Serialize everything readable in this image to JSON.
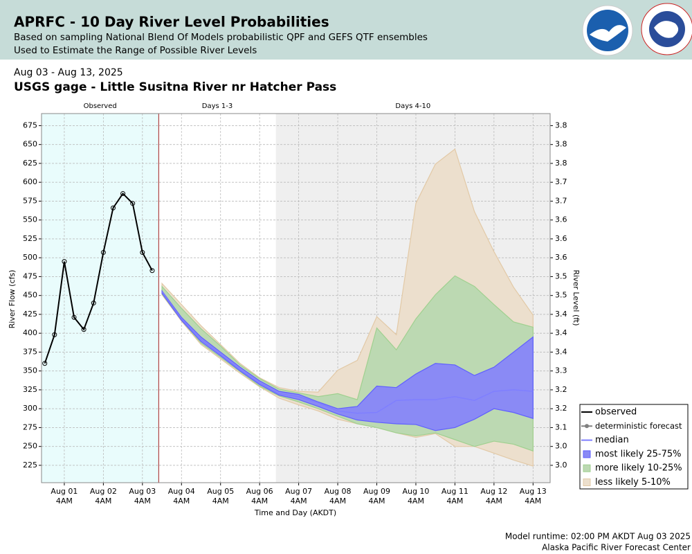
{
  "header": {
    "title": "APRFC - 10 Day River Level Probabilities",
    "subtitle_1": "Based on sampling National Blend Of Models probabilistic QPF and GEFS QTF ensembles",
    "subtitle_2": "Used to Estimate the Range of Possible River Levels"
  },
  "chart_data": {
    "type": "line",
    "date_range": "Aug 03 - Aug 13, 2025",
    "title": "USGS gage - Little Susitna River nr Hatcher Pass",
    "x_label": "Time and Day (AKDT)",
    "y_label": "River Flow (cfs)",
    "y2_label": "River Level (ft)",
    "xlim": [
      "2025-07-31T14:00",
      "2025-08-13T14:30"
    ],
    "xticks": [
      {
        "value": "2025-08-01T04:00",
        "label": "Aug 01 4AM"
      },
      {
        "value": "2025-08-02T04:00",
        "label": "Aug 02 4AM"
      },
      {
        "value": "2025-08-03T04:00",
        "label": "Aug 03 4AM"
      },
      {
        "value": "2025-08-04T04:00",
        "label": "Aug 04 4AM"
      },
      {
        "value": "2025-08-05T04:00",
        "label": "Aug 05 4AM"
      },
      {
        "value": "2025-08-06T04:00",
        "label": "Aug 06 4AM"
      },
      {
        "value": "2025-08-07T04:00",
        "label": "Aug 07 4AM"
      },
      {
        "value": "2025-08-08T04:00",
        "label": "Aug 08 4AM"
      },
      {
        "value": "2025-08-09T04:00",
        "label": "Aug 09 4AM"
      },
      {
        "value": "2025-08-10T04:00",
        "label": "Aug 10 4AM"
      },
      {
        "value": "2025-08-11T04:00",
        "label": "Aug 11 4AM"
      },
      {
        "value": "2025-08-12T04:00",
        "label": "Aug 12 4AM"
      },
      {
        "value": "2025-08-13T04:00",
        "label": "Aug 13 4AM"
      }
    ],
    "ylim": [
      202,
      691
    ],
    "yticks": [
      225,
      250,
      275,
      300,
      325,
      350,
      375,
      400,
      425,
      450,
      475,
      500,
      525,
      550,
      575,
      600,
      625,
      650,
      675
    ],
    "y2tick_labels": [
      "3.0",
      "3.0",
      "3.1",
      "3.2",
      "3.2",
      "3.3",
      "3.4",
      "3.4",
      "3.4",
      "3.5",
      "3.5",
      "3.6",
      "3.6",
      "3.6",
      "3.7",
      "3.7",
      "3.8",
      "3.8",
      "3.8"
    ],
    "grid": true,
    "regions": [
      {
        "label": "Observed",
        "start": "2025-07-31T14:00",
        "end": "2025-08-03T14:00",
        "color": "#e9fcfc"
      },
      {
        "label": "Days 1-3",
        "start": "2025-08-03T14:00",
        "end": "2025-08-06T14:00",
        "color": "#ffffff"
      },
      {
        "label": "Days 4-10",
        "start": "2025-08-06T14:00",
        "end": "2025-08-13T14:30",
        "color": "#efefef"
      }
    ],
    "forecast_start_line_color": "#a02020",
    "legend": "lower right",
    "series": [
      {
        "name": "observed",
        "type": "line",
        "markers": true,
        "color": "#000000",
        "x": [
          "2025-07-31T16:00",
          "2025-07-31T22:00",
          "2025-08-01T04:00",
          "2025-08-01T10:00",
          "2025-08-01T16:00",
          "2025-08-01T22:00",
          "2025-08-02T04:00",
          "2025-08-02T10:00",
          "2025-08-02T16:00",
          "2025-08-02T22:00",
          "2025-08-03T04:00",
          "2025-08-03T10:00"
        ],
        "values": [
          360,
          398,
          495,
          421,
          405,
          440,
          507,
          566,
          585,
          572,
          507,
          483
        ]
      },
      {
        "name": "deterministic forecast",
        "type": "line",
        "markers": true,
        "color": "#808080"
      },
      {
        "name": "median",
        "type": "line",
        "markers": false,
        "color": "#7f7fff",
        "x": [
          "2025-08-03T16:00",
          "2025-08-04T04:00",
          "2025-08-04T16:00",
          "2025-08-05T04:00",
          "2025-08-05T16:00",
          "2025-08-06T04:00",
          "2025-08-06T16:00",
          "2025-08-07T04:00",
          "2025-08-07T16:00",
          "2025-08-08T04:00",
          "2025-08-08T16:00",
          "2025-08-09T04:00",
          "2025-08-09T16:00",
          "2025-08-10T04:00",
          "2025-08-10T16:00",
          "2025-08-11T04:00",
          "2025-08-11T16:00",
          "2025-08-12T04:00",
          "2025-08-12T16:00",
          "2025-08-13T04:00"
        ],
        "values": [
          455,
          419,
          392,
          372,
          352,
          334,
          320,
          316,
          308,
          297,
          294,
          295,
          311,
          312,
          312,
          316,
          311,
          323,
          325,
          323
        ]
      },
      {
        "name": "most likely 25-75%",
        "type": "band",
        "color": "#8a8af5",
        "edge": "#5f5fff",
        "order": 3,
        "x": [
          "2025-08-03T16:00",
          "2025-08-04T04:00",
          "2025-08-04T16:00",
          "2025-08-05T04:00",
          "2025-08-05T16:00",
          "2025-08-06T04:00",
          "2025-08-06T16:00",
          "2025-08-07T04:00",
          "2025-08-07T16:00",
          "2025-08-08T04:00",
          "2025-08-08T16:00",
          "2025-08-09T04:00",
          "2025-08-09T16:00",
          "2025-08-10T04:00",
          "2025-08-10T16:00",
          "2025-08-11T04:00",
          "2025-08-11T16:00",
          "2025-08-12T04:00",
          "2025-08-12T16:00",
          "2025-08-13T04:00"
        ],
        "lower": [
          453,
          417,
          389,
          370,
          350,
          332,
          318,
          312,
          303,
          293,
          285,
          282,
          280,
          279,
          271,
          275,
          286,
          300,
          295,
          287
        ],
        "upper": [
          456,
          421,
          395,
          375,
          355,
          337,
          323,
          319,
          309,
          300,
          303,
          330,
          328,
          346,
          360,
          358,
          344,
          355,
          375,
          395
        ]
      },
      {
        "name": "more likely 10-25%",
        "type": "band",
        "color": "#bcd9b2",
        "edge": "#9fd08f",
        "order": 2,
        "x": [
          "2025-08-03T16:00",
          "2025-08-04T04:00",
          "2025-08-04T16:00",
          "2025-08-05T04:00",
          "2025-08-05T16:00",
          "2025-08-06T04:00",
          "2025-08-06T16:00",
          "2025-08-07T04:00",
          "2025-08-07T16:00",
          "2025-08-08T04:00",
          "2025-08-08T16:00",
          "2025-08-09T04:00",
          "2025-08-09T16:00",
          "2025-08-10T04:00",
          "2025-08-10T16:00",
          "2025-08-11T04:00",
          "2025-08-11T16:00",
          "2025-08-12T04:00",
          "2025-08-12T16:00",
          "2025-08-13T04:00"
        ],
        "lower": [
          452,
          417,
          387,
          368,
          349,
          330,
          317,
          309,
          300,
          290,
          280,
          275,
          268,
          264,
          268,
          259,
          250,
          257,
          253,
          244
        ],
        "upper": [
          462,
          433,
          406,
          383,
          358,
          340,
          326,
          321,
          316,
          320,
          312,
          407,
          378,
          419,
          451,
          476,
          462,
          438,
          415,
          408
        ]
      },
      {
        "name": "less likely 5-10%",
        "type": "band",
        "color": "#ecdfcd",
        "edge": "#e2c9a6",
        "order": 1,
        "x": [
          "2025-08-03T16:00",
          "2025-08-04T04:00",
          "2025-08-04T16:00",
          "2025-08-05T04:00",
          "2025-08-05T16:00",
          "2025-08-06T04:00",
          "2025-08-06T16:00",
          "2025-08-07T04:00",
          "2025-08-07T16:00",
          "2025-08-08T04:00",
          "2025-08-08T16:00",
          "2025-08-09T04:00",
          "2025-08-09T16:00",
          "2025-08-10T04:00",
          "2025-08-10T16:00",
          "2025-08-11T04:00",
          "2025-08-11T16:00",
          "2025-08-12T04:00",
          "2025-08-12T16:00",
          "2025-08-13T04:00"
        ],
        "lower": [
          451,
          416,
          385,
          366,
          347,
          329,
          314,
          305,
          297,
          286,
          280,
          275,
          268,
          262,
          267,
          250,
          250,
          241,
          232,
          224
        ],
        "upper": [
          466,
          438,
          410,
          385,
          360,
          341,
          328,
          323,
          322,
          351,
          364,
          422,
          398,
          572,
          624,
          644,
          561,
          508,
          461,
          424
        ]
      }
    ]
  },
  "footer": {
    "runtime": "Model runtime: 02:00 PM AKDT Aug 03 2025",
    "center": "Alaska Pacific River Forecast Center"
  }
}
